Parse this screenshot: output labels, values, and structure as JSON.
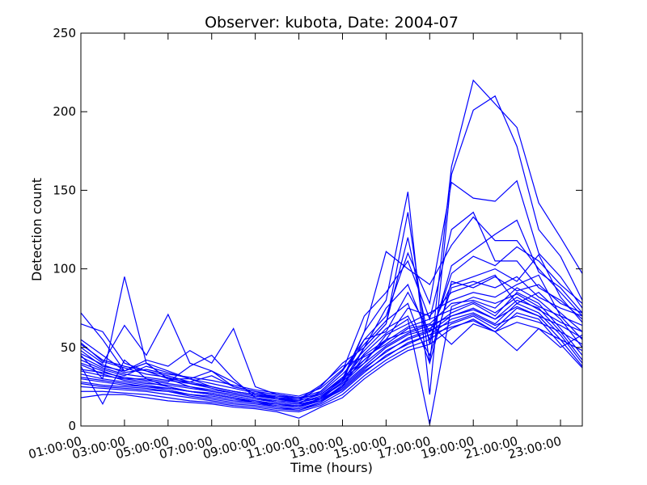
{
  "chart_data": {
    "type": "line",
    "title": "Observer: kubota, Date: 2004-07",
    "xlabel": "Time (hours)",
    "ylabel": "Detection count",
    "ylim": [
      0,
      250
    ],
    "xlim": [
      1,
      24
    ],
    "yticks": [
      0,
      50,
      100,
      150,
      200,
      250
    ],
    "xticks": [
      1,
      3,
      5,
      7,
      9,
      11,
      13,
      15,
      17,
      19,
      21,
      23
    ],
    "xtick_labels": [
      "01:00:00",
      "03:00:00",
      "05:00:00",
      "07:00:00",
      "09:00:00",
      "11:00:00",
      "13:00:00",
      "15:00:00",
      "17:00:00",
      "19:00:00",
      "21:00:00",
      "23:00:00"
    ],
    "line_color": "#0000ff",
    "grid": false,
    "x": [
      1,
      2,
      3,
      4,
      5,
      6,
      7,
      8,
      9,
      10,
      11,
      12,
      13,
      14,
      15,
      16,
      17,
      18,
      19,
      20,
      21,
      22,
      23,
      24
    ],
    "series": [
      {
        "values": [
          72,
          55,
          35,
          40,
          30,
          25,
          22,
          20,
          18,
          15,
          14,
          16,
          25,
          50,
          65,
          136,
          40,
          165,
          220,
          205,
          190,
          142,
          120,
          97
        ]
      },
      {
        "values": [
          65,
          60,
          40,
          35,
          32,
          28,
          25,
          22,
          20,
          18,
          15,
          18,
          28,
          60,
          80,
          149,
          20,
          160,
          201,
          210,
          178,
          125,
          108,
          80
        ]
      },
      {
        "values": [
          55,
          45,
          35,
          40,
          35,
          30,
          25,
          22,
          20,
          17,
          16,
          20,
          30,
          55,
          70,
          110,
          78,
          155,
          145,
          143,
          156,
          110,
          95,
          75
        ]
      },
      {
        "values": [
          50,
          40,
          64,
          45,
          71,
          40,
          35,
          25,
          22,
          20,
          18,
          22,
          35,
          70,
          85,
          105,
          68,
          125,
          136,
          105,
          105,
          88,
          80,
          68
        ]
      },
      {
        "values": [
          48,
          38,
          35,
          42,
          38,
          48,
          40,
          62,
          25,
          20,
          18,
          20,
          30,
          60,
          111,
          100,
          90,
          115,
          133,
          118,
          118,
          100,
          85,
          70
        ]
      },
      {
        "values": [
          45,
          30,
          95,
          40,
          30,
          30,
          35,
          28,
          20,
          18,
          15,
          18,
          28,
          50,
          65,
          120,
          52,
          102,
          112,
          122,
          131,
          98,
          88,
          72
        ]
      },
      {
        "values": [
          52,
          42,
          38,
          35,
          30,
          28,
          32,
          25,
          22,
          18,
          16,
          25,
          40,
          50,
          75,
          90,
          55,
          97,
          108,
          102,
          114,
          105,
          90,
          78
        ]
      },
      {
        "values": [
          40,
          35,
          30,
          30,
          28,
          38,
          45,
          30,
          18,
          15,
          14,
          22,
          35,
          55,
          60,
          85,
          60,
          90,
          95,
          100,
          92,
          109,
          82,
          66
        ]
      },
      {
        "values": [
          38,
          14,
          42,
          30,
          25,
          22,
          20,
          18,
          15,
          12,
          10,
          15,
          25,
          45,
          55,
          75,
          70,
          85,
          90,
          96,
          78,
          85,
          72,
          60
        ]
      },
      {
        "values": [
          35,
          32,
          30,
          28,
          25,
          22,
          20,
          18,
          16,
          14,
          12,
          18,
          30,
          40,
          58,
          65,
          72,
          80,
          85,
          82,
          90,
          96,
          70,
          55
        ]
      },
      {
        "values": [
          33,
          30,
          28,
          26,
          24,
          22,
          20,
          18,
          16,
          14,
          13,
          17,
          28,
          42,
          55,
          60,
          65,
          78,
          80,
          75,
          88,
          80,
          68,
          50
        ]
      },
      {
        "values": [
          30,
          28,
          26,
          25,
          23,
          20,
          18,
          16,
          15,
          13,
          12,
          16,
          26,
          38,
          50,
          58,
          62,
          72,
          78,
          70,
          85,
          78,
          62,
          45
        ]
      },
      {
        "values": [
          28,
          26,
          25,
          24,
          22,
          19,
          17,
          15,
          14,
          12,
          11,
          15,
          24,
          36,
          48,
          55,
          60,
          70,
          75,
          68,
          80,
          75,
          60,
          42
        ]
      },
      {
        "values": [
          25,
          24,
          23,
          22,
          20,
          18,
          16,
          14,
          13,
          11,
          10,
          14,
          22,
          34,
          45,
          52,
          58,
          68,
          72,
          65,
          78,
          72,
          58,
          40
        ]
      },
      {
        "values": [
          22,
          22,
          21,
          20,
          18,
          16,
          15,
          13,
          12,
          10,
          9,
          13,
          20,
          32,
          42,
          50,
          55,
          65,
          70,
          62,
          75,
          70,
          55,
          38
        ]
      },
      {
        "values": [
          18,
          20,
          20,
          18,
          16,
          15,
          14,
          12,
          11,
          9,
          5,
          12,
          18,
          30,
          40,
          48,
          52,
          62,
          68,
          60,
          72,
          68,
          52,
          37
        ]
      },
      {
        "values": [
          42,
          36,
          32,
          38,
          34,
          30,
          27,
          24,
          21,
          19,
          17,
          21,
          33,
          48,
          62,
          70,
          45,
          88,
          92,
          88,
          95,
          82,
          75,
          70
        ]
      },
      {
        "values": [
          46,
          39,
          34,
          36,
          33,
          31,
          29,
          26,
          23,
          21,
          19,
          24,
          36,
          52,
          67,
          78,
          40,
          92,
          88,
          95,
          86,
          90,
          78,
          72
        ]
      },
      {
        "values": [
          53,
          41,
          37,
          33,
          31,
          27,
          24,
          21,
          19,
          17,
          15,
          19,
          29,
          46,
          59,
          68,
          1,
          76,
          82,
          78,
          84,
          76,
          70,
          64
        ]
      },
      {
        "values": [
          36,
          34,
          31,
          29,
          27,
          25,
          23,
          21,
          19,
          18,
          17,
          26,
          38,
          44,
          52,
          62,
          65,
          52,
          65,
          60,
          48,
          62,
          50,
          58
        ]
      },
      {
        "values": [
          44,
          37,
          33,
          31,
          29,
          27,
          25,
          22,
          20,
          19,
          18,
          20,
          31,
          42,
          54,
          63,
          68,
          74,
          79,
          72,
          82,
          74,
          66,
          60
        ]
      },
      {
        "values": [
          39,
          33,
          29,
          27,
          26,
          24,
          22,
          20,
          18,
          16,
          15,
          18,
          27,
          40,
          51,
          59,
          64,
          70,
          74,
          68,
          76,
          70,
          64,
          56
        ]
      },
      {
        "values": [
          31,
          29,
          27,
          25,
          24,
          22,
          21,
          19,
          17,
          15,
          14,
          17,
          25,
          37,
          47,
          56,
          61,
          66,
          71,
          64,
          70,
          66,
          60,
          52
        ]
      },
      {
        "values": [
          27,
          25,
          24,
          23,
          22,
          20,
          19,
          17,
          15,
          14,
          13,
          16,
          23,
          35,
          44,
          53,
          58,
          63,
          67,
          60,
          66,
          62,
          55,
          48
        ]
      }
    ]
  }
}
